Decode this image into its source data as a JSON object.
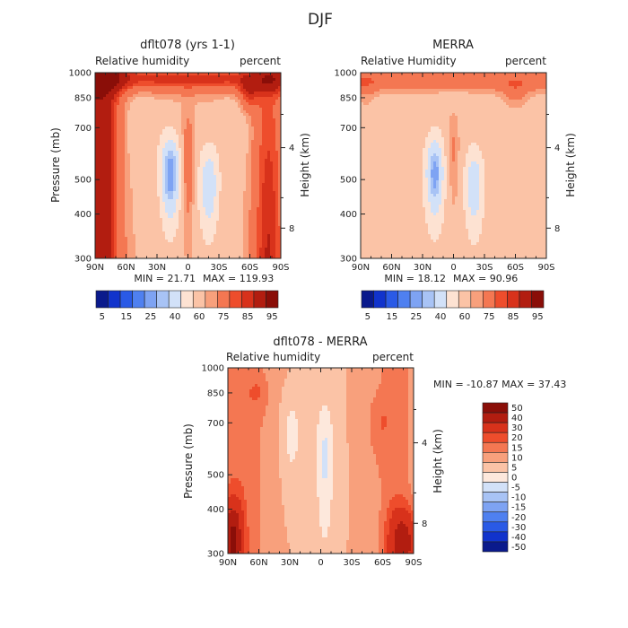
{
  "figure": {
    "title": "DJF"
  },
  "chart_data": [
    {
      "type": "heatmap",
      "title": "dflt078 (yrs 1-1)",
      "left_label": "Relative humidity",
      "right_label": "percent",
      "xlabel": "",
      "ylabel": "Pressure (mb)",
      "y2label": "Height (km)",
      "x_ticks": [
        "90N",
        "60N",
        "30N",
        "0",
        "30S",
        "60S",
        "90S"
      ],
      "y_ticks": [
        "300",
        "400",
        "500",
        "700",
        "850",
        "1000"
      ],
      "y2_ticks": [
        "8",
        "4"
      ],
      "xlim": [
        90,
        -90
      ],
      "ylim": [
        1000,
        300
      ],
      "min_text": "MIN =   21.71",
      "max_text": "MAX =  119.93",
      "colorbar_labels": [
        "5",
        "15",
        "25",
        "40",
        "60",
        "75",
        "85",
        "95"
      ],
      "missing_box": {
        "lat": [
          63,
          85
        ],
        "p": [
          930,
          1000
        ]
      }
    },
    {
      "type": "heatmap",
      "title": "MERRA",
      "left_label": "Relative Humidity",
      "right_label": "percent",
      "xlabel": "",
      "ylabel": "",
      "y2label": "Height (km)",
      "x_ticks": [
        "90N",
        "60N",
        "30N",
        "0",
        "30S",
        "60S",
        "90S"
      ],
      "y_ticks": [
        "300",
        "400",
        "500",
        "700",
        "850",
        "1000"
      ],
      "y2_ticks": [
        "8",
        "4"
      ],
      "xlim": [
        90,
        -90
      ],
      "ylim": [
        1000,
        300
      ],
      "min_text": "MIN =   18.12",
      "max_text": "MAX =   90.96",
      "colorbar_labels": [
        "5",
        "15",
        "25",
        "40",
        "60",
        "75",
        "85",
        "95"
      ],
      "missing_box": {
        "lat": [
          83,
          90
        ],
        "p": [
          880,
          1000
        ]
      }
    },
    {
      "type": "heatmap",
      "title": "dflt078 - MERRA",
      "left_label": "Relative humidity",
      "right_label": "percent",
      "xlabel": "",
      "ylabel": "Pressure (mb)",
      "y2label": "Height (km)",
      "x_ticks": [
        "90N",
        "60N",
        "30N",
        "0",
        "30S",
        "60S",
        "90S"
      ],
      "y_ticks": [
        "300",
        "400",
        "500",
        "700",
        "850",
        "1000"
      ],
      "y2_ticks": [
        "8",
        "4"
      ],
      "xlim": [
        90,
        -90
      ],
      "ylim": [
        1000,
        300
      ],
      "minmax_text": "MIN = -10.87   MAX =   37.43",
      "colorbar_labels": [
        "50",
        "40",
        "30",
        "20",
        "15",
        "10",
        "5",
        "0",
        "-5",
        "-10",
        "-15",
        "-20",
        "-30",
        "-40",
        "-50"
      ],
      "missing_box": {
        "lat": [
          -55,
          -82
        ],
        "p": [
          920,
          1000
        ]
      }
    }
  ],
  "colors": {
    "abs_levels": [
      "#0a1a8c",
      "#1133cc",
      "#2a5ae6",
      "#4f80f0",
      "#7ea3f3",
      "#a8c3f5",
      "#d2e1f8",
      "#fde2d2",
      "#fbc3a6",
      "#f8a07c",
      "#f47752",
      "#ee4d2c",
      "#d8321b",
      "#b21d10",
      "#8a0e08"
    ],
    "diff_levels": [
      "#0a1a8c",
      "#1133cc",
      "#2a5ae6",
      "#4f80f0",
      "#7ea3f3",
      "#a8c3f5",
      "#d2e1f8",
      "#fde8dc",
      "#fbc3a6",
      "#f8a07c",
      "#f47752",
      "#ee4d2c",
      "#d8321b",
      "#b21d10",
      "#8a0e08"
    ]
  }
}
